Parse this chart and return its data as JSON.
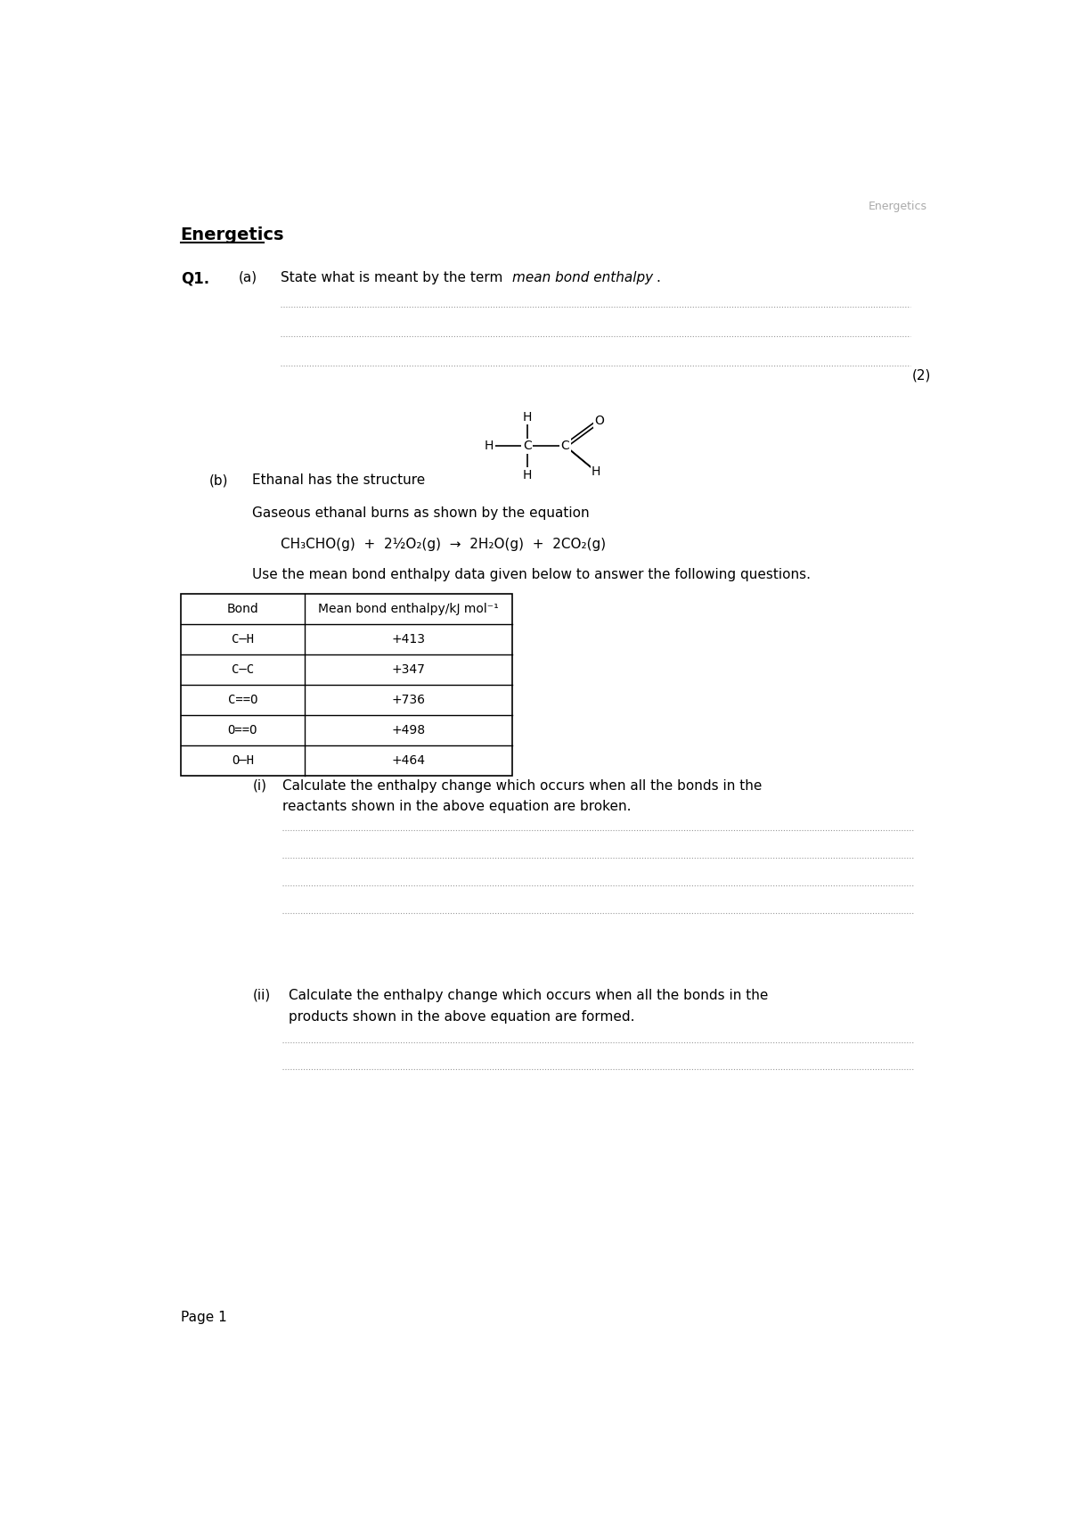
{
  "header_watermark": "Energetics",
  "title": "Energetics",
  "q1_label": "Q1.",
  "q1a_label": "(a)",
  "q1a_text": "State what is meant by the term ",
  "q1a_italic": "mean bond enthalpy",
  "q1a_end": ".",
  "marks_a": "(2)",
  "q1b_label": "(b)",
  "q1b_text": "Ethanal has the structure",
  "gaseous_text": "Gaseous ethanal burns as shown by the equation",
  "equation_parts": [
    {
      "text": "CH",
      "style": "normal"
    },
    {
      "text": "3",
      "style": "sub"
    },
    {
      "text": "CHO(g)  +  2½O",
      "style": "normal"
    },
    {
      "text": "2",
      "style": "sub"
    },
    {
      "text": "(g)  →  2H",
      "style": "normal"
    },
    {
      "text": "2",
      "style": "sub"
    },
    {
      "text": "O(g)  +  2CO",
      "style": "normal"
    },
    {
      "text": "2",
      "style": "sub"
    },
    {
      "text": "(g)",
      "style": "normal"
    }
  ],
  "use_text": "Use the mean bond enthalpy data given below to answer the following questions.",
  "table_headers": [
    "Bond",
    "Mean bond enthalpy/kJ mol⁻¹"
  ],
  "table_data": [
    [
      "C—H",
      "+413"
    ],
    [
      "C—C",
      "+347"
    ],
    [
      "C==O",
      "+736"
    ],
    [
      "O==O",
      "+498"
    ],
    [
      "O—H",
      "+464"
    ]
  ],
  "q_i_label": "(i)",
  "q_i_text1": "Calculate the enthalpy change which occurs when all the bonds in the",
  "q_i_text2": "reactants shown in the above equation are broken.",
  "q_ii_label": "(ii)",
  "q_ii_text1": "Calculate the enthalpy change which occurs when all the bonds in the",
  "q_ii_text2": "products shown in the above equation are formed.",
  "page_label": "Page 1",
  "bg_color": "#ffffff",
  "text_color": "#000000",
  "gray_color": "#aaaaaa"
}
